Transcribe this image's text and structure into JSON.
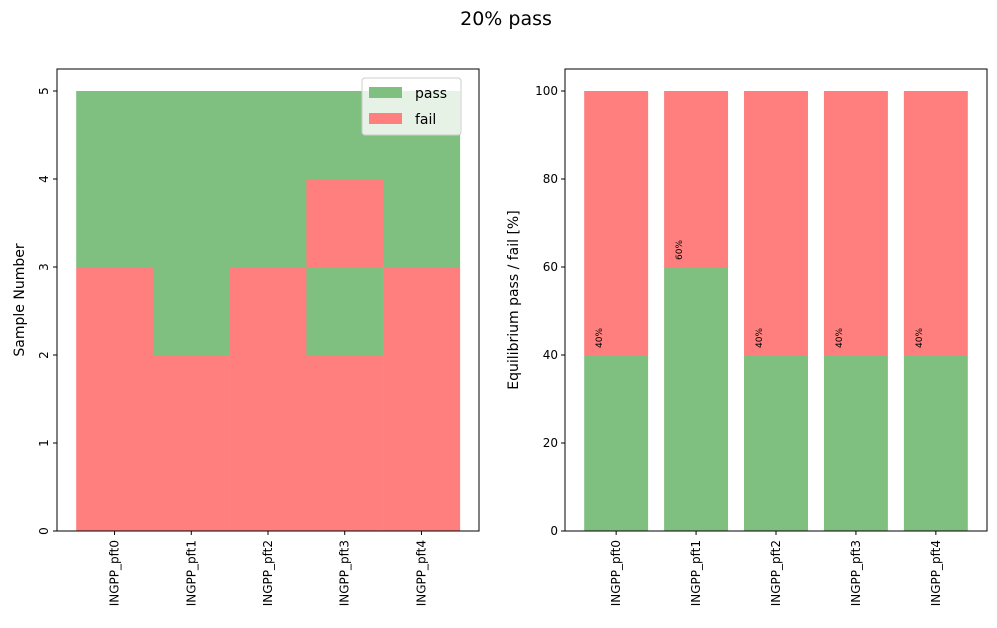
{
  "figure": {
    "suptitle": "20% pass"
  },
  "colors": {
    "pass": "#7fbf7f",
    "fail": "#ff7f7f",
    "axis": "#000000"
  },
  "chart_data": [
    {
      "type": "heatmap",
      "title": "",
      "xlabel": "",
      "ylabel": "Sample Number",
      "categories": [
        "INGPP_pft0",
        "INGPP_pft1",
        "INGPP_pft2",
        "INGPP_pft3",
        "INGPP_pft4"
      ],
      "ylim": [
        0,
        5.25
      ],
      "yticks": [
        0,
        1,
        2,
        3,
        4,
        5
      ],
      "samples": [
        "1",
        "2",
        "3",
        "4",
        "5"
      ],
      "status": [
        [
          "fail",
          "fail",
          "fail",
          "pass",
          "pass"
        ],
        [
          "fail",
          "fail",
          "pass",
          "pass",
          "pass"
        ],
        [
          "fail",
          "fail",
          "fail",
          "pass",
          "pass"
        ],
        [
          "fail",
          "fail",
          "pass",
          "fail",
          "pass"
        ],
        [
          "fail",
          "fail",
          "fail",
          "pass",
          "pass"
        ]
      ],
      "legend": {
        "position": "top-right",
        "entries": [
          "pass",
          "fail"
        ]
      }
    },
    {
      "type": "bar",
      "title": "",
      "xlabel": "",
      "ylabel": "Equilibrium pass / fail [%]",
      "categories": [
        "INGPP_pft0",
        "INGPP_pft1",
        "INGPP_pft2",
        "INGPP_pft3",
        "INGPP_pft4"
      ],
      "ylim": [
        0,
        105
      ],
      "yticks": [
        0,
        20,
        40,
        60,
        80,
        100
      ],
      "series": [
        {
          "key": "pass",
          "values": [
            40,
            60,
            40,
            40,
            40
          ]
        },
        {
          "key": "fail",
          "values": [
            60,
            40,
            60,
            60,
            60
          ]
        }
      ],
      "data_labels": [
        "40%",
        "60%",
        "40%",
        "40%",
        "40%"
      ]
    }
  ]
}
